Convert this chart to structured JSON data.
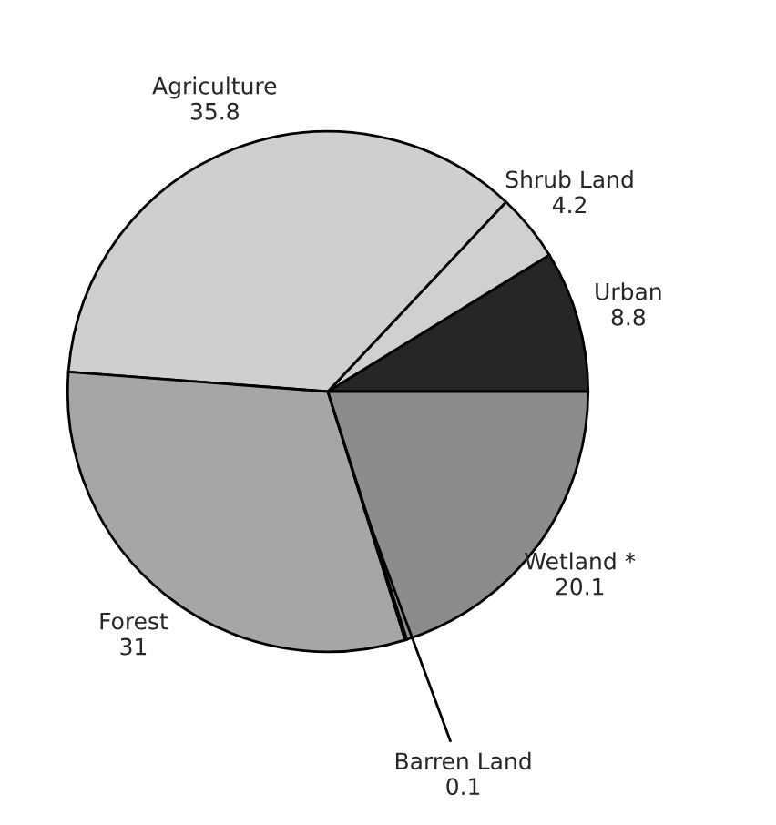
{
  "chart_data": {
    "type": "pie",
    "categories": [
      "Urban",
      "Shrub Land",
      "Agriculture",
      "Forest",
      "Barren Land",
      "Wetland *"
    ],
    "values": [
      8.8,
      4.2,
      35.8,
      31,
      0.1,
      20.1
    ],
    "colors": [
      "#262626",
      "#d0d0d0",
      "#cfcfcf",
      "#a6a6a6",
      "#e0e0e0",
      "#8c8c8c"
    ],
    "data_labels": true
  }
}
